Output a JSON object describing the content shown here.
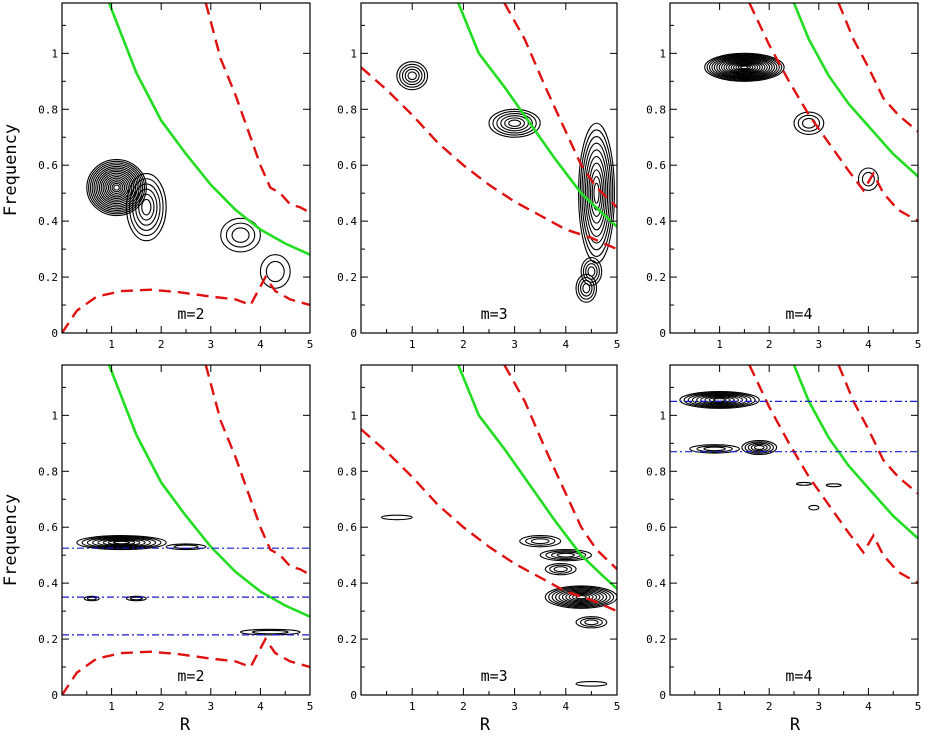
{
  "ylabel": "Frequency",
  "xlabel": "R",
  "colors": {
    "green": "#22dd22",
    "red": "#e01010",
    "blue": "#1a1acc",
    "contour": "#000000"
  },
  "chart_data": [
    {
      "type": "contour",
      "label": "m=2",
      "xlim": [
        0,
        5
      ],
      "ylim": [
        0,
        1.18
      ],
      "xticks": [
        1,
        2,
        3,
        4,
        5
      ],
      "yticks": [
        0,
        0.2,
        0.4,
        0.6,
        0.8,
        1
      ],
      "green_curve": [
        [
          0.95,
          1.18
        ],
        [
          1.5,
          0.93
        ],
        [
          2.0,
          0.76
        ],
        [
          2.5,
          0.64
        ],
        [
          3.0,
          0.53
        ],
        [
          3.5,
          0.44
        ],
        [
          4.0,
          0.37
        ],
        [
          4.5,
          0.32
        ],
        [
          5.0,
          0.28
        ]
      ],
      "red_outer": [
        [
          2.9,
          1.18
        ],
        [
          3.2,
          0.98
        ],
        [
          3.5,
          0.85
        ],
        [
          3.8,
          0.7
        ],
        [
          4.0,
          0.6
        ],
        [
          4.2,
          0.52
        ],
        [
          4.4,
          0.5
        ],
        [
          4.6,
          0.46
        ],
        [
          4.8,
          0.45
        ],
        [
          5.0,
          0.43
        ]
      ],
      "red_inner": [
        [
          0.0,
          0.0
        ],
        [
          0.3,
          0.08
        ],
        [
          0.7,
          0.13
        ],
        [
          1.2,
          0.15
        ],
        [
          1.8,
          0.155
        ],
        [
          2.4,
          0.145
        ],
        [
          3.0,
          0.13
        ],
        [
          3.5,
          0.12
        ],
        [
          3.8,
          0.1
        ],
        [
          4.1,
          0.2
        ],
        [
          4.3,
          0.15
        ],
        [
          4.6,
          0.12
        ],
        [
          5.0,
          0.1
        ]
      ],
      "resonances": [],
      "blobs": [
        [
          1.1,
          0.52,
          0.6,
          0.1,
          16
        ],
        [
          1.7,
          0.45,
          0.4,
          0.12,
          6
        ],
        [
          3.6,
          0.35,
          0.4,
          0.06,
          3
        ],
        [
          4.3,
          0.22,
          0.3,
          0.06,
          2
        ]
      ]
    },
    {
      "type": "contour",
      "label": "m=3",
      "xlim": [
        0,
        5
      ],
      "ylim": [
        0,
        1.18
      ],
      "xticks": [
        1,
        2,
        3,
        4,
        5
      ],
      "yticks": [
        0,
        0.2,
        0.4,
        0.6,
        0.8,
        1
      ],
      "green_curve": [
        [
          1.9,
          1.18
        ],
        [
          2.3,
          1.0
        ],
        [
          2.8,
          0.88
        ],
        [
          3.3,
          0.75
        ],
        [
          3.8,
          0.62
        ],
        [
          4.3,
          0.5
        ],
        [
          4.7,
          0.43
        ],
        [
          5.0,
          0.38
        ]
      ],
      "red_outer": [
        [
          2.8,
          1.18
        ],
        [
          3.2,
          1.05
        ],
        [
          3.6,
          0.88
        ],
        [
          4.0,
          0.72
        ],
        [
          4.3,
          0.6
        ],
        [
          4.6,
          0.52
        ],
        [
          5.0,
          0.45
        ]
      ],
      "red_inner": [
        [
          0.0,
          0.95
        ],
        [
          0.5,
          0.87
        ],
        [
          1.0,
          0.78
        ],
        [
          1.5,
          0.68
        ],
        [
          2.0,
          0.6
        ],
        [
          2.5,
          0.53
        ],
        [
          3.0,
          0.47
        ],
        [
          3.5,
          0.42
        ],
        [
          4.0,
          0.37
        ],
        [
          4.5,
          0.34
        ],
        [
          5.0,
          0.3
        ]
      ],
      "resonances": [],
      "blobs": [
        [
          1.0,
          0.92,
          0.3,
          0.05,
          5
        ],
        [
          3.0,
          0.75,
          0.5,
          0.05,
          6
        ],
        [
          4.6,
          0.5,
          0.35,
          0.25,
          10
        ],
        [
          4.5,
          0.22,
          0.2,
          0.05,
          4
        ],
        [
          4.4,
          0.16,
          0.2,
          0.05,
          4
        ]
      ]
    },
    {
      "type": "contour",
      "label": "m=4",
      "xlim": [
        0,
        5
      ],
      "ylim": [
        0,
        1.18
      ],
      "xticks": [
        1,
        2,
        3,
        4,
        5
      ],
      "yticks": [
        0,
        0.2,
        0.4,
        0.6,
        0.8,
        1
      ],
      "green_curve": [
        [
          2.5,
          1.18
        ],
        [
          2.8,
          1.05
        ],
        [
          3.2,
          0.92
        ],
        [
          3.6,
          0.82
        ],
        [
          4.0,
          0.74
        ],
        [
          4.5,
          0.64
        ],
        [
          5.0,
          0.56
        ]
      ],
      "red_outer": [
        [
          3.4,
          1.18
        ],
        [
          3.7,
          1.05
        ],
        [
          4.0,
          0.95
        ],
        [
          4.3,
          0.84
        ],
        [
          4.6,
          0.78
        ],
        [
          5.0,
          0.72
        ]
      ],
      "red_inner": [
        [
          1.6,
          1.18
        ],
        [
          2.0,
          1.03
        ],
        [
          2.4,
          0.9
        ],
        [
          2.8,
          0.78
        ],
        [
          3.2,
          0.68
        ],
        [
          3.6,
          0.58
        ],
        [
          3.9,
          0.51
        ],
        [
          4.1,
          0.57
        ],
        [
          4.3,
          0.5
        ],
        [
          4.6,
          0.44
        ],
        [
          5.0,
          0.4
        ]
      ],
      "resonances": [],
      "blobs": [
        [
          1.5,
          0.95,
          0.8,
          0.05,
          16
        ],
        [
          2.8,
          0.75,
          0.3,
          0.04,
          3
        ],
        [
          4.0,
          0.55,
          0.2,
          0.04,
          2
        ]
      ]
    },
    {
      "type": "contour",
      "label": "m=2",
      "xlim": [
        0,
        5
      ],
      "ylim": [
        0,
        1.18
      ],
      "xticks": [
        1,
        2,
        3,
        4,
        5
      ],
      "yticks": [
        0,
        0.2,
        0.4,
        0.6,
        0.8,
        1
      ],
      "green_curve": [
        [
          0.95,
          1.18
        ],
        [
          1.5,
          0.93
        ],
        [
          2.0,
          0.76
        ],
        [
          2.5,
          0.64
        ],
        [
          3.0,
          0.53
        ],
        [
          3.5,
          0.44
        ],
        [
          4.0,
          0.37
        ],
        [
          4.5,
          0.32
        ],
        [
          5.0,
          0.28
        ]
      ],
      "red_outer": [
        [
          2.9,
          1.18
        ],
        [
          3.2,
          0.98
        ],
        [
          3.5,
          0.85
        ],
        [
          3.8,
          0.7
        ],
        [
          4.0,
          0.6
        ],
        [
          4.2,
          0.52
        ],
        [
          4.4,
          0.5
        ],
        [
          4.6,
          0.46
        ],
        [
          4.8,
          0.45
        ],
        [
          5.0,
          0.43
        ]
      ],
      "red_inner": [
        [
          0.0,
          0.0
        ],
        [
          0.3,
          0.08
        ],
        [
          0.7,
          0.13
        ],
        [
          1.2,
          0.15
        ],
        [
          1.8,
          0.155
        ],
        [
          2.4,
          0.145
        ],
        [
          3.0,
          0.13
        ],
        [
          3.5,
          0.12
        ],
        [
          3.8,
          0.1
        ],
        [
          4.1,
          0.2
        ],
        [
          4.3,
          0.15
        ],
        [
          4.6,
          0.12
        ],
        [
          5.0,
          0.1
        ]
      ],
      "resonances": [
        0.525,
        0.35,
        0.215
      ],
      "blobs": [
        [
          1.2,
          0.545,
          0.9,
          0.025,
          8
        ],
        [
          2.5,
          0.53,
          0.4,
          0.01,
          2
        ],
        [
          0.6,
          0.345,
          0.15,
          0.008,
          2
        ],
        [
          1.5,
          0.345,
          0.2,
          0.008,
          2
        ],
        [
          4.2,
          0.225,
          0.6,
          0.01,
          2
        ]
      ]
    },
    {
      "type": "contour",
      "label": "m=3",
      "xlim": [
        0,
        5
      ],
      "ylim": [
        0,
        1.18
      ],
      "xticks": [
        1,
        2,
        3,
        4,
        5
      ],
      "yticks": [
        0,
        0.2,
        0.4,
        0.6,
        0.8,
        1
      ],
      "green_curve": [
        [
          1.9,
          1.18
        ],
        [
          2.3,
          1.0
        ],
        [
          2.8,
          0.88
        ],
        [
          3.3,
          0.75
        ],
        [
          3.8,
          0.62
        ],
        [
          4.3,
          0.5
        ],
        [
          4.7,
          0.43
        ],
        [
          5.0,
          0.38
        ]
      ],
      "red_outer": [
        [
          2.8,
          1.18
        ],
        [
          3.2,
          1.05
        ],
        [
          3.6,
          0.88
        ],
        [
          4.0,
          0.72
        ],
        [
          4.3,
          0.6
        ],
        [
          4.6,
          0.52
        ],
        [
          5.0,
          0.45
        ]
      ],
      "red_inner": [
        [
          0.0,
          0.95
        ],
        [
          0.5,
          0.87
        ],
        [
          1.0,
          0.78
        ],
        [
          1.5,
          0.68
        ],
        [
          2.0,
          0.6
        ],
        [
          2.5,
          0.53
        ],
        [
          3.0,
          0.47
        ],
        [
          3.5,
          0.42
        ],
        [
          4.0,
          0.37
        ],
        [
          4.5,
          0.34
        ],
        [
          5.0,
          0.3
        ]
      ],
      "resonances": [],
      "blobs": [
        [
          4.3,
          0.35,
          0.7,
          0.04,
          10
        ],
        [
          4.0,
          0.5,
          0.5,
          0.02,
          4
        ],
        [
          3.9,
          0.45,
          0.3,
          0.02,
          3
        ],
        [
          3.5,
          0.55,
          0.4,
          0.02,
          3
        ],
        [
          4.5,
          0.26,
          0.3,
          0.02,
          3
        ],
        [
          0.7,
          0.635,
          0.3,
          0.008,
          1
        ],
        [
          4.5,
          0.04,
          0.3,
          0.008,
          1
        ]
      ]
    },
    {
      "type": "contour",
      "label": "m=4",
      "xlim": [
        0,
        5
      ],
      "ylim": [
        0,
        1.18
      ],
      "xticks": [
        1,
        2,
        3,
        4,
        5
      ],
      "yticks": [
        0,
        0.2,
        0.4,
        0.6,
        0.8,
        1
      ],
      "green_curve": [
        [
          2.5,
          1.18
        ],
        [
          2.8,
          1.05
        ],
        [
          3.2,
          0.92
        ],
        [
          3.6,
          0.82
        ],
        [
          4.0,
          0.74
        ],
        [
          4.5,
          0.64
        ],
        [
          5.0,
          0.56
        ]
      ],
      "red_outer": [
        [
          3.4,
          1.18
        ],
        [
          3.7,
          1.05
        ],
        [
          4.0,
          0.95
        ],
        [
          4.3,
          0.84
        ],
        [
          4.6,
          0.78
        ],
        [
          5.0,
          0.72
        ]
      ],
      "red_inner": [
        [
          1.6,
          1.18
        ],
        [
          2.0,
          1.03
        ],
        [
          2.4,
          0.9
        ],
        [
          2.8,
          0.78
        ],
        [
          3.2,
          0.68
        ],
        [
          3.6,
          0.58
        ],
        [
          3.9,
          0.51
        ],
        [
          4.1,
          0.57
        ],
        [
          4.3,
          0.5
        ],
        [
          4.6,
          0.44
        ],
        [
          5.0,
          0.4
        ]
      ],
      "resonances": [
        1.05,
        0.87
      ],
      "blobs": [
        [
          1.0,
          1.055,
          0.8,
          0.03,
          9
        ],
        [
          0.9,
          0.88,
          0.5,
          0.015,
          3
        ],
        [
          1.8,
          0.885,
          0.35,
          0.025,
          5
        ],
        [
          2.7,
          0.755,
          0.15,
          0.005,
          1
        ],
        [
          3.3,
          0.75,
          0.15,
          0.005,
          1
        ],
        [
          2.9,
          0.67,
          0.1,
          0.008,
          1
        ]
      ]
    }
  ]
}
